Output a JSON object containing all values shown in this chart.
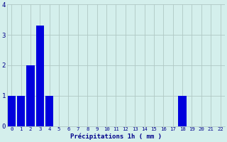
{
  "categories": [
    0,
    1,
    2,
    3,
    4,
    5,
    6,
    7,
    8,
    9,
    10,
    11,
    12,
    13,
    14,
    15,
    16,
    17,
    18,
    19,
    20,
    21,
    22
  ],
  "values": [
    1,
    1,
    2,
    3.3,
    1,
    0,
    0,
    0,
    0,
    0,
    0,
    0,
    0,
    0,
    0,
    0,
    0,
    0,
    1,
    0,
    0,
    0,
    0
  ],
  "bar_color": "#0000dd",
  "bg_color": "#d4efec",
  "grid_color": "#b0c8c4",
  "xlabel": "Précipitations 1h ( mm )",
  "xlabel_color": "#00008b",
  "tick_color": "#00008b",
  "ylim": [
    0,
    4
  ],
  "xlim": [
    -0.5,
    22.5
  ],
  "yticks": [
    0,
    1,
    2,
    3,
    4
  ],
  "bar_width": 0.85,
  "figsize": [
    3.2,
    2.0
  ],
  "dpi": 100
}
